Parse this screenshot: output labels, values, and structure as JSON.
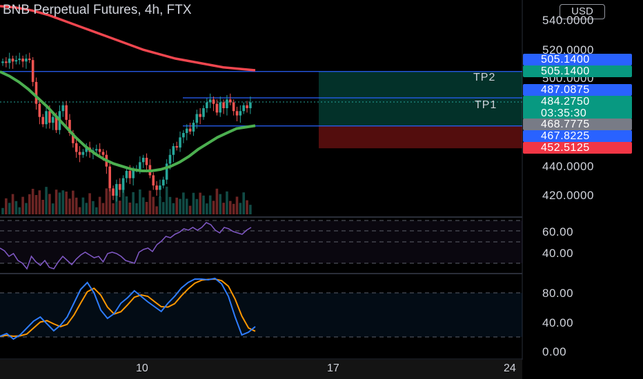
{
  "header": {
    "title": "BNB Perpetual Futures, 4h, FTX",
    "currency": "USD"
  },
  "price_axis": {
    "labels": [
      {
        "text": "540.0000",
        "value": 540
      },
      {
        "text": "520.0000",
        "value": 520
      },
      {
        "text": "500.0000",
        "value": 500
      },
      {
        "text": "440.0000",
        "value": 440
      },
      {
        "text": "420.0000",
        "value": 420
      }
    ]
  },
  "price_tags": [
    {
      "text": "505.1400",
      "color": "#2962ff"
    },
    {
      "text": "505.1400",
      "color": "#089981"
    },
    {
      "text": "487.0875",
      "color": "#2962ff"
    },
    {
      "text": "484.2750",
      "sub": "03:35:30",
      "color": "#089981"
    },
    {
      "text": "468.7775",
      "color": "#787b86"
    },
    {
      "text": "467.8225",
      "color": "#2962ff"
    },
    {
      "text": "452.5125",
      "color": "#f23645"
    }
  ],
  "annotations": {
    "tp2": "TP2",
    "tp1": "TP1"
  },
  "rsi_axis": [
    {
      "text": "60.00"
    },
    {
      "text": "40.00"
    }
  ],
  "stoch_axis": [
    {
      "text": "80.00"
    },
    {
      "text": "40.00"
    },
    {
      "text": "0.00"
    }
  ],
  "time_axis": [
    {
      "text": "10"
    },
    {
      "text": "17"
    },
    {
      "text": "24"
    }
  ],
  "colors": {
    "up": "#26a69a",
    "down": "#ef5350",
    "ema_slow": "#f0464f",
    "ema_fast": "#4caf50",
    "rsi": "#7e57c2",
    "stoch_k": "#2f7dff",
    "stoch_d": "#ff9800",
    "target_zone": "#089981",
    "stop_zone": "#b71c1c",
    "hline": "#2962ff"
  },
  "chart_data": {
    "type": "candlestick",
    "timeframe": "4h",
    "ylim": [
      410,
      545
    ],
    "levels": {
      "tp2": 505.14,
      "tp1": 487.0875,
      "entry": 467.8225,
      "stop": 452.5125,
      "last": 484.275
    },
    "close": [
      512,
      511,
      514,
      512,
      513,
      514,
      512,
      514,
      513,
      498,
      483,
      474,
      469,
      478,
      470,
      474,
      465,
      478,
      482,
      472,
      463,
      456,
      450,
      448,
      450,
      453,
      450,
      451,
      452,
      450,
      448,
      440,
      425,
      420,
      428,
      424,
      432,
      437,
      432,
      438,
      438,
      443,
      446,
      441,
      434,
      427,
      424,
      427,
      431,
      442,
      448,
      454,
      453,
      460,
      463,
      466,
      464,
      470,
      476,
      474,
      480,
      484,
      486,
      483,
      477,
      484,
      480,
      486,
      484,
      478,
      475,
      478,
      482,
      480,
      484
    ],
    "ema_fast": [
      505,
      502,
      498,
      493,
      487,
      481,
      474,
      467,
      460,
      454,
      449,
      445,
      442,
      440,
      438,
      437,
      437,
      438,
      440,
      443,
      447,
      452,
      456,
      460,
      463,
      466,
      467,
      468
    ],
    "ema_slow": [
      550,
      549,
      547,
      544,
      540,
      536,
      532,
      528,
      524,
      520,
      517,
      514,
      512,
      510,
      508,
      507,
      506
    ]
  }
}
